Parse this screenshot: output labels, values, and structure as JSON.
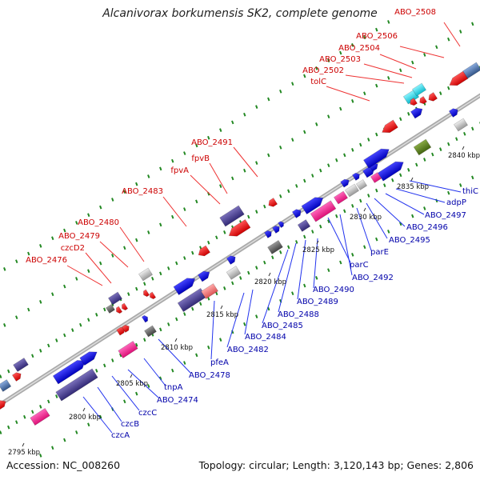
{
  "title": "Alcanivorax borkumensis SK2, complete genome",
  "accession": "Accession: NC_008260",
  "topology": "Topology: circular; Length: 3,120,143 bp; Genes: 2,806",
  "colors": {
    "red_label": "#cc0000",
    "blue_label": "#0000aa",
    "red_gene": "#ee1111",
    "blue_gene": "#1111dd",
    "purple_gene": "#4a3f8c",
    "pink_gene": "#ee2288",
    "gray_gene": "#bbbbbb",
    "dark_gray_gene": "#666666",
    "cyan_gene": "#22ddee",
    "olive_gene": "#5c8a2a",
    "steel_gene": "#4477aa",
    "salmon_gene": "#ee7777",
    "backbone": "#999999",
    "tick_green": "#228822"
  },
  "kbp_labels": [
    "2795 kbp",
    "2800 kbp",
    "2805 kbp",
    "2810 kbp",
    "2815 kbp",
    "2820 kbp",
    "2825 kbp",
    "2830 kbp",
    "2835 kbp",
    "2840 kbp"
  ],
  "red_labels": [
    "ABO_2508",
    "ABO_2506",
    "ABO_2504",
    "ABO_2503",
    "ABO_2502",
    "tolC",
    "ABO_2491",
    "fpvB",
    "fpvA",
    "ABO_2483",
    "ABO_2480",
    "ABO_2479",
    "czcD2",
    "ABO_2476"
  ],
  "blue_labels": [
    "thiC",
    "adpP",
    "ABO_2497",
    "ABO_2496",
    "ABO_2495",
    "parE",
    "ABO_2492",
    "parC",
    "ABO_2490",
    "ABO_2489",
    "ABO_2488",
    "ABO_2485",
    "ABO_2484",
    "ABO_2482",
    "pfeA",
    "ABO_2478",
    "tnpA",
    "ABO_2474",
    "czcC",
    "czcB",
    "czcA"
  ]
}
